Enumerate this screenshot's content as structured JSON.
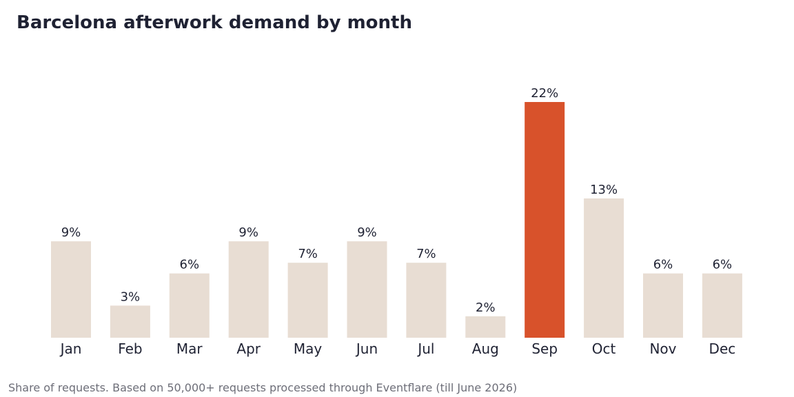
{
  "chart_data": {
    "type": "bar",
    "title": "Barcelona afterwork demand by month",
    "footnote": "Share of requests. Based on 50,000+ requests processed through Eventflare (till June 2026)",
    "categories": [
      "Jan",
      "Feb",
      "Mar",
      "Apr",
      "May",
      "Jun",
      "Jul",
      "Aug",
      "Sep",
      "Oct",
      "Nov",
      "Dec"
    ],
    "values": [
      9,
      3,
      6,
      9,
      7,
      9,
      7,
      2,
      22,
      13,
      6,
      6
    ],
    "value_labels": [
      "9%",
      "3%",
      "6%",
      "9%",
      "7%",
      "9%",
      "7%",
      "2%",
      "22%",
      "13%",
      "6%",
      "6%"
    ],
    "highlight_category": "Sep",
    "ylim": [
      0,
      22
    ],
    "grid": false,
    "colors": {
      "bar": "#e8ddd3",
      "highlight": "#d8522b",
      "text": "#1f2233",
      "footnote": "#6d6e78"
    }
  }
}
